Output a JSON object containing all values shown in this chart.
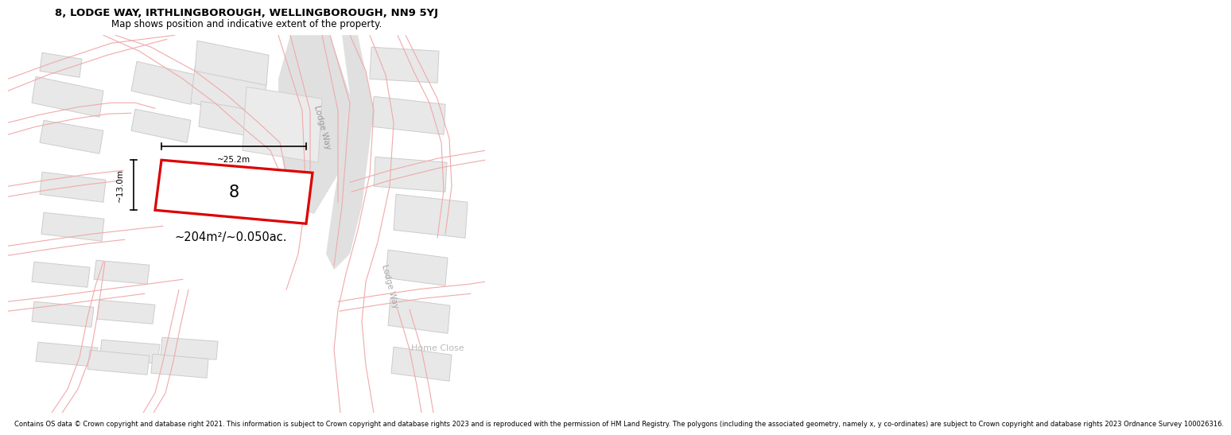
{
  "title_line1": "8, LODGE WAY, IRTHLINGBOROUGH, WELLINGBOROUGH, NN9 5YJ",
  "title_line2": "Map shows position and indicative extent of the property.",
  "copyright_text": "Contains OS data © Crown copyright and database right 2021. This information is subject to Crown copyright and database rights 2023 and is reproduced with the permission of HM Land Registry. The polygons (including the associated geometry, namely x, y co-ordinates) are subject to Crown copyright and database rights 2023 Ordnance Survey 100026316.",
  "building_color": "#e8e8e8",
  "building_edge_color": "#cccccc",
  "road_line_color": "#f0aaaa",
  "highlight_color": "#dd0000",
  "area_label": "~204m²/~0.050ac.",
  "width_label": "~25.2m",
  "height_label": "~13.0m",
  "property_number": "8",
  "road_label1": "Lodge Way",
  "road_label2": "Lodge Way",
  "home_close_label": "Home Close",
  "road_gray_color": "#e0e0e0",
  "road_gray_edge": "#cccccc"
}
